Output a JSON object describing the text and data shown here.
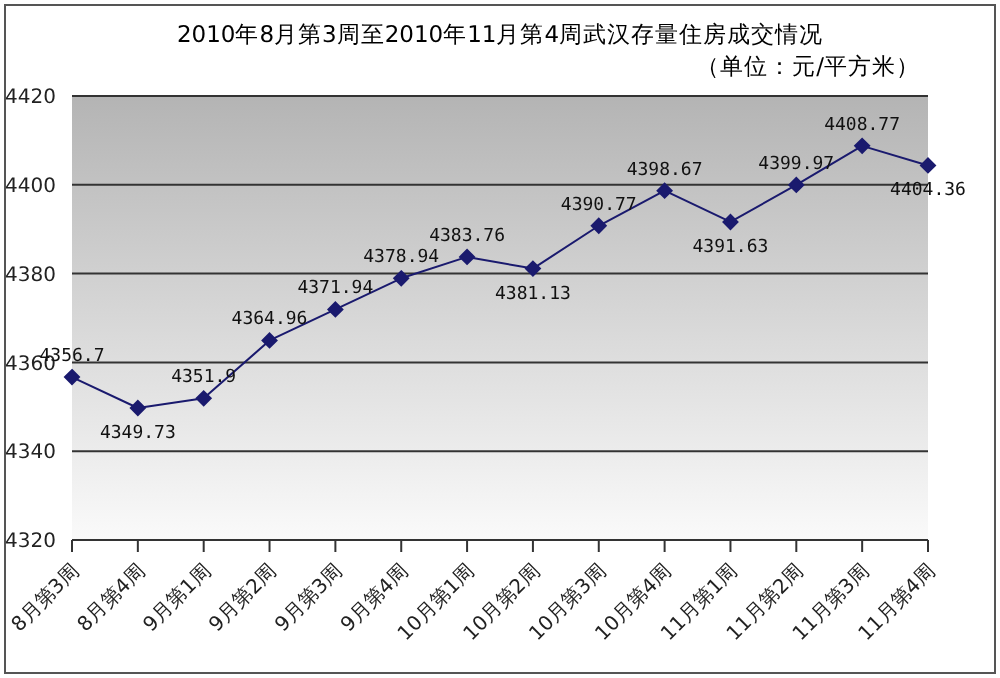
{
  "chart_data": {
    "type": "line",
    "title": "2010年8月第3周至2010年11月第4周武汉存量住房成交情况",
    "subtitle": "（单位：元/平方米）",
    "categories": [
      "8月第3周",
      "8月第4周",
      "9月第1周",
      "9月第2周",
      "9月第3周",
      "9月第4周",
      "10月第1周",
      "10月第2周",
      "10月第3周",
      "10月第4周",
      "11月第1周",
      "11月第2周",
      "11月第3周",
      "11月第4周"
    ],
    "series": [
      {
        "color": "#1a1a6e",
        "values": [
          4356.7,
          4349.73,
          4351.9,
          4364.96,
          4371.94,
          4378.94,
          4383.76,
          4381.13,
          4390.77,
          4398.67,
          4391.63,
          4399.97,
          4408.77,
          4404.36
        ]
      }
    ],
    "ylim": [
      4320,
      4420
    ],
    "yticks": [
      4320,
      4340,
      4360,
      4380,
      4400,
      4420
    ],
    "grid": "y",
    "marker": "diamond",
    "data_labels": true,
    "legend": false
  }
}
